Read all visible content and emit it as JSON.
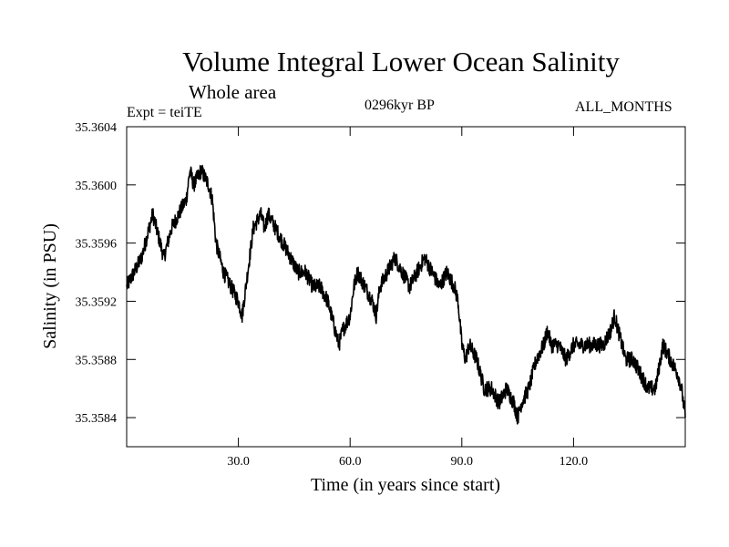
{
  "chart_data": {
    "type": "line",
    "title": "Volume Integral Lower Ocean Salinity",
    "subtitle": "Whole area",
    "annotations": {
      "left": "Expt = teiTE",
      "center": "0296kyr BP",
      "right": "ALL_MONTHS"
    },
    "xlabel": "Time (in years since start)",
    "ylabel": "Salinity (in PSU)",
    "xlim": [
      0,
      150
    ],
    "ylim": [
      35.3582,
      35.3604
    ],
    "x_ticks": [
      30,
      60,
      90,
      120
    ],
    "x_tick_labels": [
      "30.0",
      "60.0",
      "90.0",
      "120.0"
    ],
    "y_ticks": [
      35.3584,
      35.3588,
      35.3592,
      35.3596,
      35.36,
      35.3604
    ],
    "y_tick_labels": [
      "35.3584",
      "35.3588",
      "35.3592",
      "35.3596",
      "35.3600",
      "35.3604"
    ],
    "grid": false,
    "series": [
      {
        "name": "salinity",
        "x": [
          0,
          2,
          4,
          6,
          7,
          8,
          10,
          12,
          14,
          16,
          17,
          18,
          20,
          22,
          23,
          24,
          25,
          26,
          28,
          30,
          31,
          32,
          33,
          34,
          36,
          37,
          38,
          40,
          42,
          44,
          46,
          48,
          50,
          52,
          54,
          55,
          56,
          57,
          58,
          60,
          61,
          62,
          64,
          66,
          67,
          68,
          70,
          72,
          74,
          76,
          78,
          80,
          82,
          84,
          86,
          88,
          89,
          90,
          91,
          92,
          94,
          96,
          98,
          100,
          102,
          104,
          105,
          106,
          108,
          110,
          112,
          113,
          114,
          116,
          118,
          120,
          122,
          124,
          126,
          128,
          130,
          131,
          132,
          133,
          134,
          136,
          138,
          140,
          142,
          144,
          146,
          148,
          149,
          150
        ],
        "y": [
          35.3593,
          35.3594,
          35.3595,
          35.3597,
          35.3598,
          35.3597,
          35.3595,
          35.3597,
          35.3598,
          35.3599,
          35.3601,
          35.36,
          35.3601,
          35.36,
          35.3599,
          35.3596,
          35.3595,
          35.3594,
          35.3593,
          35.3592,
          35.3591,
          35.3593,
          35.3595,
          35.3597,
          35.3598,
          35.3597,
          35.3598,
          35.3597,
          35.3596,
          35.3595,
          35.3594,
          35.3594,
          35.3593,
          35.3593,
          35.3592,
          35.3591,
          35.359,
          35.3589,
          35.359,
          35.3591,
          35.3593,
          35.3594,
          35.3593,
          35.3592,
          35.3591,
          35.3593,
          35.3594,
          35.3595,
          35.3594,
          35.3593,
          35.3594,
          35.3595,
          35.3594,
          35.3593,
          35.3594,
          35.3593,
          35.3592,
          35.3589,
          35.3588,
          35.3589,
          35.3588,
          35.3586,
          35.3586,
          35.3585,
          35.3586,
          35.3585,
          35.3584,
          35.3585,
          35.3586,
          35.3588,
          35.3589,
          35.359,
          35.3589,
          35.3589,
          35.3588,
          35.3589,
          35.3589,
          35.3589,
          35.3589,
          35.3589,
          35.359,
          35.3591,
          35.359,
          35.3589,
          35.3588,
          35.3588,
          35.3587,
          35.3586,
          35.3586,
          35.3589,
          35.3588,
          35.3587,
          35.3586,
          35.3584
        ]
      }
    ]
  }
}
